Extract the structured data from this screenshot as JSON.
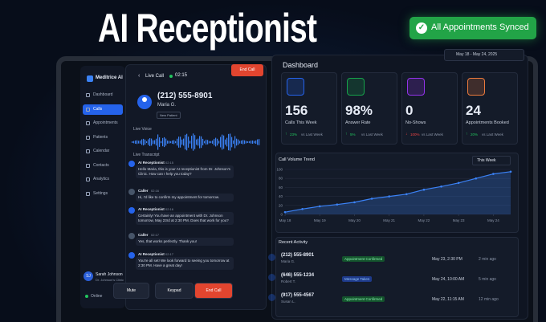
{
  "headline": "AI Receptionist",
  "badge": "All Appointments Synced",
  "sidebar": {
    "brand": "Meditrice AI",
    "nav": [
      "Dashboard",
      "Calls",
      "Appointments",
      "Patients",
      "Calendar",
      "Contacts",
      "Analytics",
      "Settings"
    ],
    "user": {
      "initials": "SJ",
      "name": "Sarah Johnson",
      "org": "Dr. Johnson's Clinic"
    },
    "status": "Online"
  },
  "call": {
    "label": "Live Call",
    "timer": "02:15",
    "end_top": "End Call",
    "phone": "(212) 555-8901",
    "name": "Maria G.",
    "tag": "New Patient",
    "voice_label": "Live Voice",
    "transcript_label": "Live Transcript",
    "messages": [
      {
        "speaker": "AI Receptionist",
        "time": "02:15",
        "text": "Hello Maria, this is your AI receptionist from Dr. Johnson's Clinic. How can I help you today?"
      },
      {
        "speaker": "Caller",
        "time": "02:16",
        "text": "Hi, I'd like to confirm my appointment for tomorrow."
      },
      {
        "speaker": "AI Receptionist",
        "time": "02:16",
        "text": "Certainly! You have an appointment with Dr. Johnson tomorrow, May 23rd at 2:30 PM. Does that work for you?"
      },
      {
        "speaker": "Caller",
        "time": "02:17",
        "text": "Yes, that works perfectly. Thank you!"
      },
      {
        "speaker": "AI Receptionist",
        "time": "02:17",
        "text": "You're all set! We look forward to seeing you tomorrow at 2:30 PM. Have a great day!"
      }
    ],
    "controls": [
      "Mute",
      "Keypad",
      "End Call"
    ]
  },
  "dashboard": {
    "title": "Dashboard",
    "date_range": "May 18 - May 24, 2025",
    "stats": [
      {
        "value": "156",
        "label": "Calls This Week",
        "change": "23%",
        "compare": "vs Last Week"
      },
      {
        "value": "98%",
        "label": "Answer Rate",
        "change": "5%",
        "compare": "vs Last Week"
      },
      {
        "value": "0",
        "label": "No-Shows",
        "change": "100%",
        "compare": "vs Last Week"
      },
      {
        "value": "24",
        "label": "Appointments Booked",
        "change": "20%",
        "compare": "vs Last Week"
      }
    ],
    "chart": {
      "type": "line",
      "title": "Call Volume Trend",
      "period": "This Week",
      "color": "#3b82f6",
      "x": [
        0,
        0.5,
        1,
        1.5,
        2,
        2.5,
        3,
        3.5,
        4,
        4.5,
        5,
        5.5,
        6,
        6.5
      ],
      "values": [
        5,
        12,
        18,
        22,
        27,
        35,
        40,
        45,
        55,
        62,
        70,
        80,
        90,
        95
      ],
      "xlim": [
        0,
        6.5
      ],
      "xticks": [
        {
          "value": 0,
          "label": "May 18"
        },
        {
          "value": 1,
          "label": "May 19"
        },
        {
          "value": 2,
          "label": "May 20"
        },
        {
          "value": 3,
          "label": "May 21"
        },
        {
          "value": 4,
          "label": "May 22"
        },
        {
          "value": 5,
          "label": "May 23"
        },
        {
          "value": 6,
          "label": "May 24"
        }
      ],
      "ylim": [
        0,
        100
      ],
      "yticks": [
        0,
        20,
        40,
        60,
        80,
        100
      ],
      "grid": true
    },
    "activity": {
      "title": "Recent Activity",
      "rows": [
        {
          "phone": "(212) 555-8901",
          "name": "Maria G.",
          "status": "Appointment Confirmed",
          "when": "May 23, 2:30 PM",
          "ago": "2 min ago"
        },
        {
          "phone": "(646) 555-1234",
          "name": "Robert T.",
          "status": "Message Taken",
          "when": "May 24, 10:00 AM",
          "ago": "5 min ago"
        },
        {
          "phone": "(917) 555-4567",
          "name": "Susan L.",
          "status": "Appointment Confirmed",
          "when": "May 22, 11:15 AM",
          "ago": "12 min ago"
        }
      ]
    }
  }
}
